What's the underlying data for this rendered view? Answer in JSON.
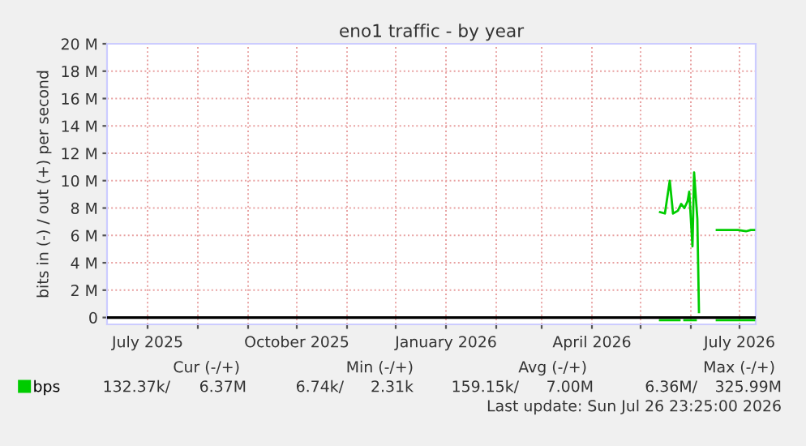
{
  "chart_data": {
    "type": "line",
    "title": "eno1 traffic - by year",
    "ylabel": "bits in (-) / out (+) per second",
    "xlim": [
      "2025-06-06",
      "2026-07-11"
    ],
    "xticks": [
      {
        "value": "2025-07-01",
        "label": "July 2025"
      },
      {
        "value": "2025-08-01",
        "label": null
      },
      {
        "value": "2025-09-01",
        "label": null
      },
      {
        "value": "2025-10-01",
        "label": "October 2025"
      },
      {
        "value": "2025-11-01",
        "label": null
      },
      {
        "value": "2025-12-01",
        "label": null
      },
      {
        "value": "2026-01-01",
        "label": "January 2026"
      },
      {
        "value": "2026-02-01",
        "label": null
      },
      {
        "value": "2026-03-01",
        "label": null
      },
      {
        "value": "2026-04-01",
        "label": "April 2026"
      },
      {
        "value": "2026-05-01",
        "label": null
      },
      {
        "value": "2026-06-01",
        "label": null
      },
      {
        "value": "2026-07-01",
        "label": "July 2026"
      }
    ],
    "ylim": [
      -0.5,
      20
    ],
    "yticks": [
      0,
      {
        "value": 2,
        "label": "2 M"
      },
      {
        "value": 4,
        "label": "4 M"
      },
      {
        "value": 6,
        "label": "6 M"
      },
      {
        "value": 8,
        "label": "8 M"
      },
      {
        "value": 10,
        "label": "10 M"
      },
      {
        "value": 12,
        "label": "12 M"
      },
      {
        "value": 14,
        "label": "14 M"
      },
      {
        "value": 16,
        "label": "16 M"
      },
      {
        "value": 18,
        "label": "18 M"
      },
      {
        "value": 20,
        "label": "20 M"
      }
    ],
    "grid": true,
    "legend": "bottom left",
    "marker": "none",
    "line_style": "solid",
    "series": [
      {
        "name": "bps",
        "color": "#00cc00",
        "x": [
          "2026-05-13",
          "2026-05-16",
          "2026-05-19",
          "2026-05-21",
          "2026-05-24",
          "2026-05-26",
          "2026-05-28",
          "2026-05-30",
          "2026-05-31",
          "2026-06-02",
          "2026-06-03",
          "2026-06-04",
          "2026-06-05",
          "2026-06-06",
          "2026-06-10",
          "2026-06-17",
          "2026-06-30",
          "2026-07-05",
          "2026-07-08",
          "2026-07-10"
        ],
        "values": [
          7.7,
          7.6,
          10.0,
          7.6,
          7.8,
          8.3,
          8.0,
          8.5,
          9.2,
          5.2,
          10.6,
          8.9,
          7.2,
          0.4,
          null,
          6.4,
          6.4,
          6.3,
          6.4,
          6.4
        ]
      },
      {
        "color": "#00cc00",
        "x": [
          "2026-05-13",
          "2026-05-25",
          "2026-05-27",
          "2026-05-28",
          "2026-06-04",
          "2026-06-10",
          "2026-06-17",
          "2026-07-10"
        ],
        "values": [
          -0.2,
          -0.2,
          null,
          -0.2,
          -0.2,
          null,
          -0.2,
          -0.2
        ]
      }
    ],
    "ref_lines": [
      {
        "axis": "y",
        "value": 0,
        "color": "#000000"
      }
    ],
    "annotations": [
      "Cur (-/+)",
      "Min (-/+)",
      "Avg (-/+)",
      "Max (-/+)",
      "132.37k/",
      "6.37M",
      "6.74k/",
      "2.31k",
      "159.15k/",
      "7.00M",
      "6.36M/",
      "325.99M",
      "Last update: Sun Jul 26 23:25:00 2026"
    ]
  }
}
